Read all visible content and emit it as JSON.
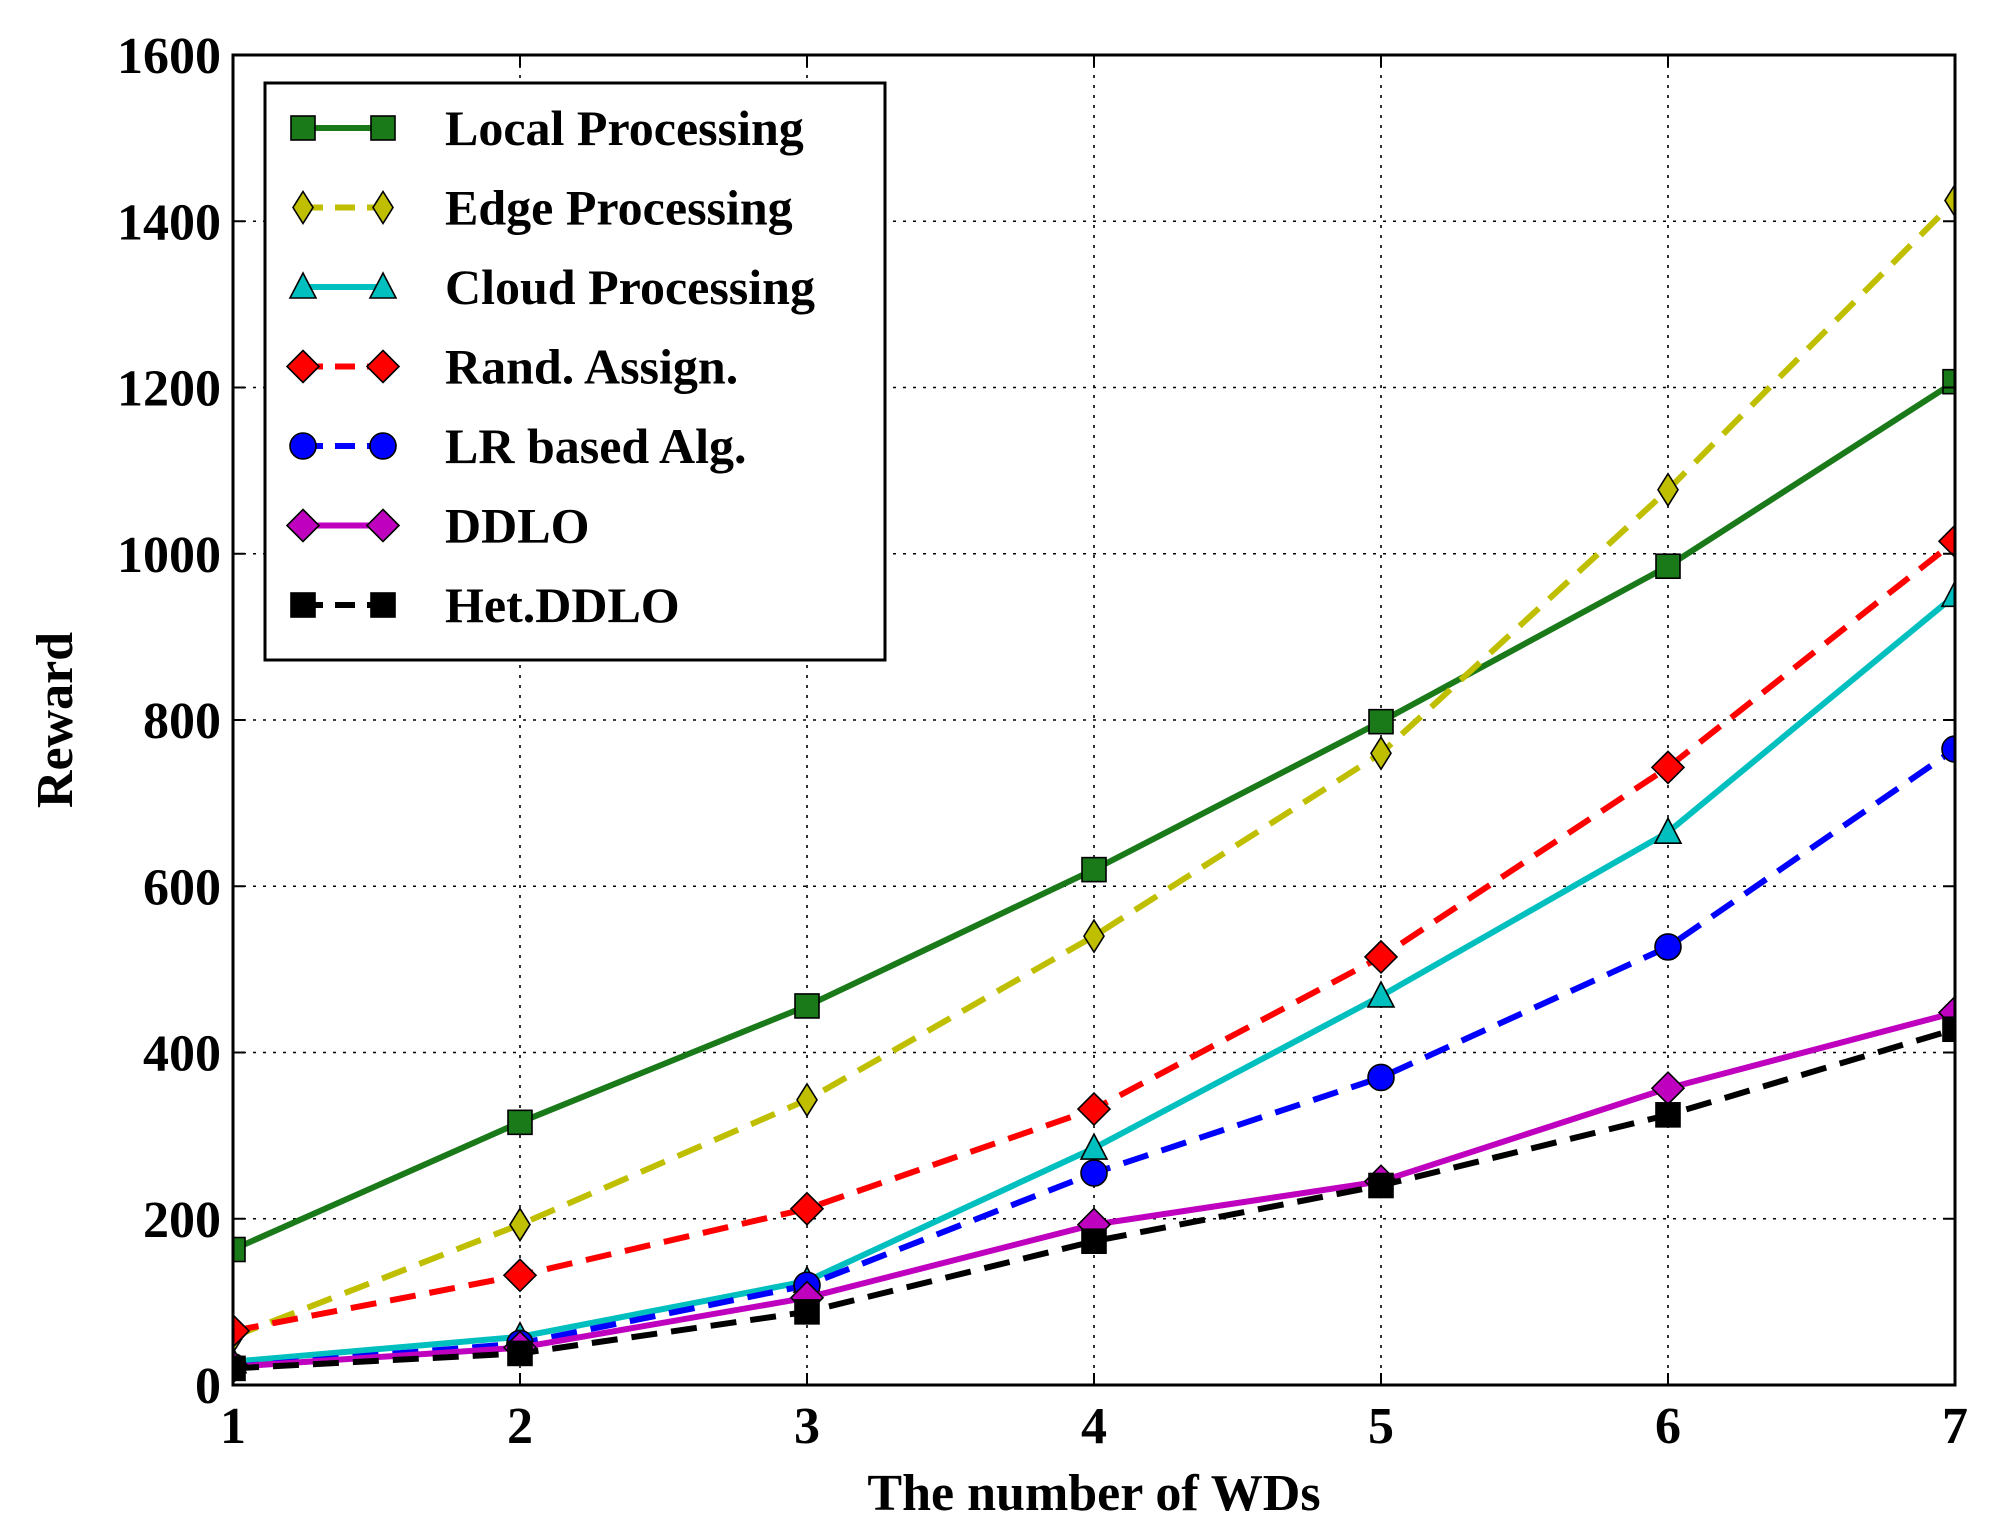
{
  "chart_data": {
    "type": "line",
    "title": "",
    "xlabel": "The number of WDs",
    "ylabel": "Reward",
    "x": [
      1,
      2,
      3,
      4,
      5,
      6,
      7
    ],
    "xlim": [
      1,
      7
    ],
    "ylim": [
      0,
      1600
    ],
    "xticks": [
      "1",
      "2",
      "3",
      "4",
      "5",
      "6",
      "7"
    ],
    "yticks": [
      "0",
      "200",
      "400",
      "600",
      "800",
      "1000",
      "1200",
      "1400",
      "1600"
    ],
    "grid": true,
    "legend_position": "top-left",
    "series": [
      {
        "name": "Local Processing",
        "color": "#1a7a1a",
        "dash": "solid",
        "marker": "square",
        "values": [
          163,
          316,
          456,
          620,
          798,
          985,
          1207
        ]
      },
      {
        "name": "Edge Processing",
        "color": "#bfbf00",
        "dash": "dashed",
        "marker": "thin-diamond",
        "values": [
          58,
          193,
          343,
          540,
          760,
          1077,
          1425
        ]
      },
      {
        "name": "Cloud Processing",
        "color": "#00bfbf",
        "dash": "solid",
        "marker": "triangle",
        "values": [
          28,
          58,
          125,
          285,
          468,
          665,
          950
        ]
      },
      {
        "name": "Rand. Assign.",
        "color": "#ff0000",
        "dash": "dashed",
        "marker": "diamond",
        "values": [
          65,
          132,
          212,
          332,
          515,
          743,
          1015
        ]
      },
      {
        "name": "LR based Alg.",
        "color": "#0000ff",
        "dash": "dashed",
        "marker": "circle",
        "values": [
          22,
          50,
          120,
          255,
          370,
          527,
          765
        ]
      },
      {
        "name": "DDLO",
        "color": "#bf00bf",
        "dash": "solid",
        "marker": "diamond",
        "values": [
          22,
          45,
          105,
          193,
          245,
          357,
          448
        ]
      },
      {
        "name": "Het.DDLO",
        "color": "#000000",
        "dash": "dashed",
        "marker": "square",
        "values": [
          20,
          38,
          88,
          173,
          240,
          325,
          428
        ]
      }
    ]
  }
}
